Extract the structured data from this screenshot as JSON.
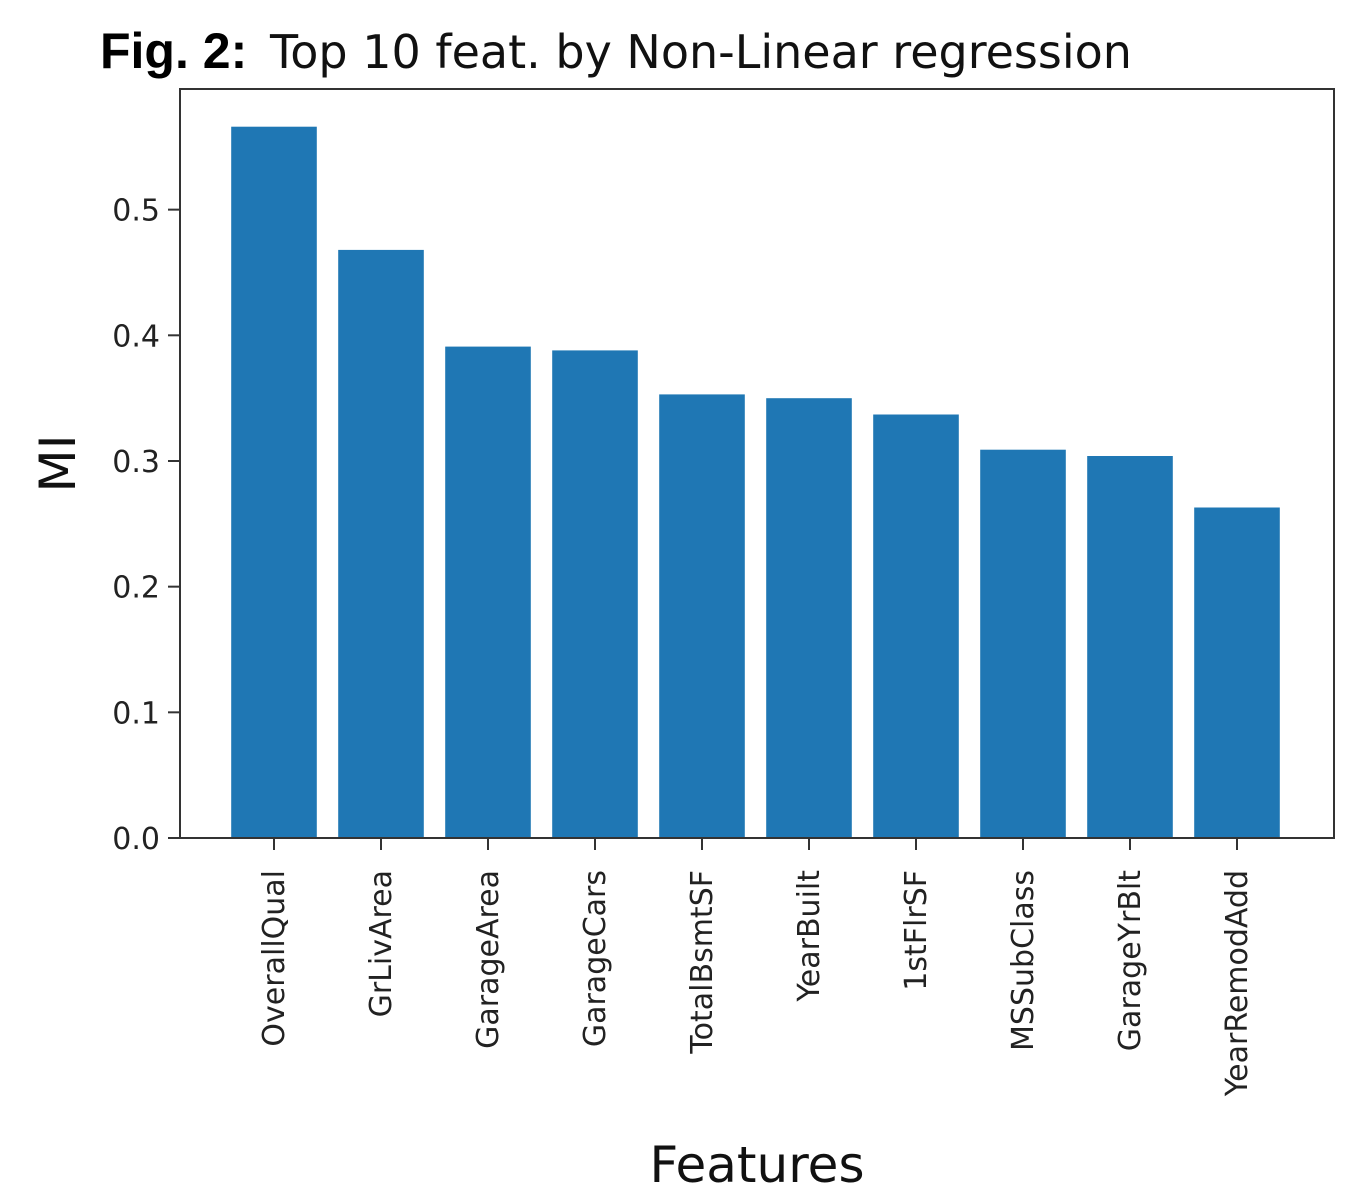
{
  "figure": {
    "label": "Fig. 2:",
    "title": "Top 10 feat. by Non-Linear regression"
  },
  "chart_data": {
    "type": "bar",
    "categories": [
      "OverallQual",
      "GrLivArea",
      "GarageArea",
      "GarageCars",
      "TotalBsmtSF",
      "YearBuilt",
      "1stFlrSF",
      "MSSubClass",
      "GarageYrBlt",
      "YearRemodAdd"
    ],
    "values": [
      0.566,
      0.468,
      0.391,
      0.388,
      0.353,
      0.35,
      0.337,
      0.309,
      0.304,
      0.263
    ],
    "xlabel": "Features",
    "ylabel": "MI",
    "ylim": [
      0,
      0.596
    ],
    "yticks": [
      0.0,
      0.1,
      0.2,
      0.3,
      0.4,
      0.5
    ],
    "ytick_labels": [
      "0.0",
      "0.1",
      "0.2",
      "0.3",
      "0.4",
      "0.5"
    ],
    "grid": false,
    "bar_color": "#1f77b4"
  }
}
